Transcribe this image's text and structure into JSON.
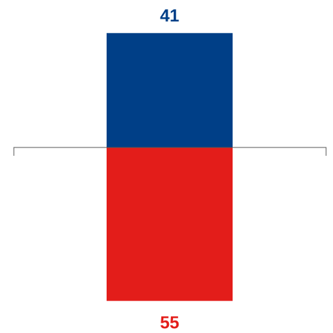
{
  "chart_data": {
    "type": "bar",
    "orientation": "diverging-vertical",
    "categories": [
      ""
    ],
    "series": [
      {
        "direction": "up",
        "values": [
          41
        ],
        "color": "#003f87"
      },
      {
        "direction": "down",
        "values": [
          55
        ],
        "color": "#e31d1a"
      }
    ],
    "baseline": 0,
    "ylim": [
      -55,
      41
    ],
    "labels": [
      "41",
      "55"
    ],
    "axis_color": "#555555",
    "grid": false,
    "legend": "none",
    "title": "",
    "xlabel": "",
    "ylabel": ""
  }
}
